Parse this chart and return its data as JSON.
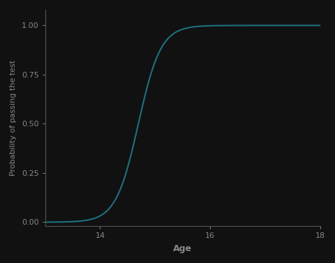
{
  "title": "",
  "xlabel": "Age",
  "ylabel": "Probability of passing the test",
  "xlim": [
    13,
    18
  ],
  "ylim": [
    -0.02,
    1.08
  ],
  "xticks": [
    14,
    16,
    18
  ],
  "yticks": [
    0.0,
    0.25,
    0.5,
    0.75,
    1.0
  ],
  "ytick_labels": [
    "0.00",
    "0.25",
    "0.50",
    "0.75",
    "1.00"
  ],
  "background_color": "#111111",
  "line_color": "#1f7080",
  "text_color": "#888888",
  "axis_line_color": "#555555",
  "logistic_beta0": -72,
  "logistic_beta1": 4.9,
  "figsize": [
    4.8,
    3.77
  ],
  "dpi": 100
}
